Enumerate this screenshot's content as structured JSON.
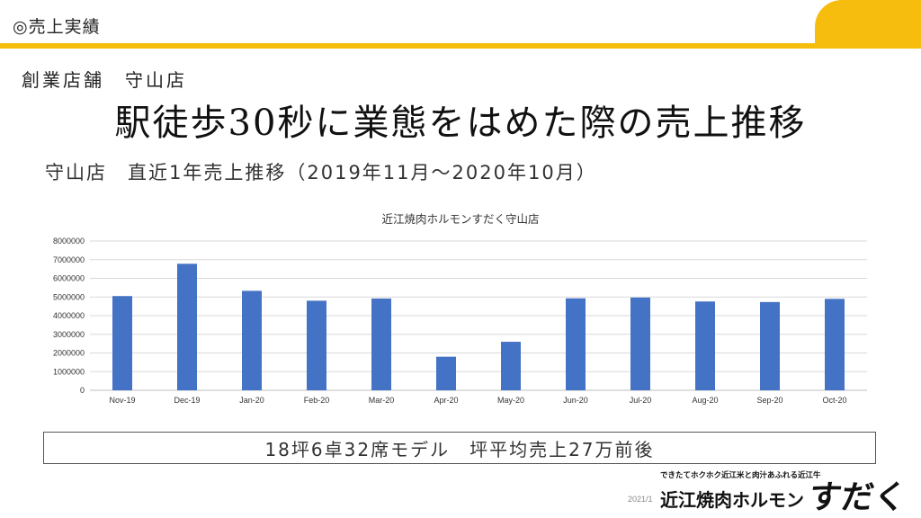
{
  "header": {
    "section": "◎売上実績"
  },
  "store": "創業店舗　守山店",
  "title": "駅徒歩30秒に業態をはめた際の売上推移",
  "subtitle": "守山店　直近1年売上推移（2019年11月～2020年10月）",
  "model_note": "18坪6卓32席モデル　坪平均売上27万前後",
  "footer": {
    "date": "2021/1"
  },
  "logo": {
    "tagline": "できたてホクホク近江米と肉汁あふれる近江牛",
    "name": "近江焼肉ホルモン",
    "brand": "すだく"
  },
  "colors": {
    "accent": "#f6bd0f",
    "bar": "#4472c4",
    "grid": "#d9d9d9"
  },
  "chart_data": {
    "type": "bar",
    "title": "近江焼肉ホルモンすだく守山店",
    "categories": [
      "Nov-19",
      "Dec-19",
      "Jan-20",
      "Feb-20",
      "Mar-20",
      "Apr-20",
      "May-20",
      "Jun-20",
      "Jul-20",
      "Aug-20",
      "Sep-20",
      "Oct-20"
    ],
    "values": [
      5050000,
      6780000,
      5330000,
      4800000,
      4920000,
      1800000,
      2600000,
      4930000,
      4970000,
      4760000,
      4730000,
      4900000
    ],
    "ylim": [
      0,
      8000000
    ],
    "yticks": [
      0,
      1000000,
      2000000,
      3000000,
      4000000,
      5000000,
      6000000,
      7000000,
      8000000
    ],
    "grid": true,
    "legend": "none"
  }
}
